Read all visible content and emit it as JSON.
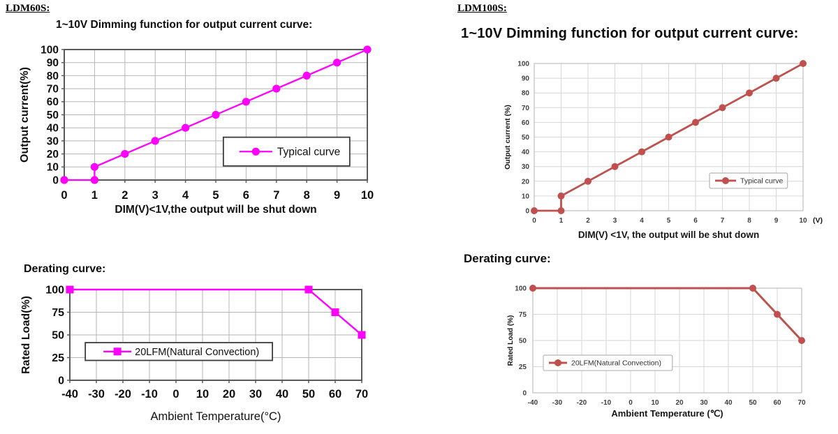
{
  "page": {
    "background": "#ffffff",
    "panels": [
      {
        "model_label": "LDM60S:"
      },
      {
        "model_label": "LDM100S:"
      }
    ]
  },
  "chart_data": [
    {
      "id": "ldm60s-dimming",
      "type": "line",
      "title": "1~10V Dimming function for output current curve:",
      "xlabel": "DIM(V)<1V,the output will be shut down",
      "ylabel": "Output current(%)",
      "xlim": [
        0,
        10
      ],
      "ylim": [
        0,
        100
      ],
      "xticks": [
        0,
        1,
        2,
        3,
        4,
        5,
        6,
        7,
        8,
        9,
        10
      ],
      "yticks": [
        0,
        10,
        20,
        30,
        40,
        50,
        60,
        70,
        80,
        90,
        100
      ],
      "grid": true,
      "legend": {
        "label": "Typical curve",
        "position": "inside-right"
      },
      "series": [
        {
          "name": "Typical curve",
          "color": "#ff00ff",
          "marker": "circle",
          "points": [
            [
              0,
              0
            ],
            [
              1,
              0
            ],
            [
              1,
              10
            ],
            [
              2,
              20
            ],
            [
              3,
              30
            ],
            [
              4,
              40
            ],
            [
              5,
              50
            ],
            [
              6,
              60
            ],
            [
              7,
              70
            ],
            [
              8,
              80
            ],
            [
              9,
              90
            ],
            [
              10,
              100
            ]
          ]
        }
      ]
    },
    {
      "id": "ldm60s-derating",
      "type": "line",
      "title": "Derating curve:",
      "xlabel": "Ambient Temperature(°C)",
      "ylabel": "Rated Load(%)",
      "xlim": [
        -40,
        70
      ],
      "ylim": [
        0,
        100
      ],
      "xticks": [
        -40,
        -30,
        -20,
        -10,
        0,
        10,
        20,
        30,
        40,
        50,
        60,
        70
      ],
      "yticks": [
        0,
        25,
        50,
        75,
        100
      ],
      "grid": true,
      "legend": {
        "label": "20LFM(Natural Convection)",
        "position": "inside-left"
      },
      "series": [
        {
          "name": "20LFM(Natural Convection)",
          "color": "#ff00ff",
          "marker": "square",
          "points": [
            [
              -40,
              100
            ],
            [
              50,
              100
            ],
            [
              60,
              75
            ],
            [
              70,
              50
            ]
          ]
        }
      ]
    },
    {
      "id": "ldm100s-dimming",
      "type": "line",
      "title": "1~10V Dimming function for output current curve:",
      "xlabel": "DIM(V) <1V, the output will be shut down",
      "ylabel": "Output current (%)",
      "x_unit": "(V)",
      "xlim": [
        0,
        10
      ],
      "ylim": [
        0,
        100
      ],
      "xticks": [
        0,
        1,
        2,
        3,
        4,
        5,
        6,
        7,
        8,
        9,
        10
      ],
      "yticks": [
        0,
        10,
        20,
        30,
        40,
        50,
        60,
        70,
        80,
        90,
        100
      ],
      "grid": true,
      "legend": {
        "label": "Typical curve",
        "position": "inside-right"
      },
      "series": [
        {
          "name": "Typical curve",
          "color": "#c0504d",
          "marker": "circle",
          "points": [
            [
              0,
              0
            ],
            [
              1,
              0
            ],
            [
              1,
              10
            ],
            [
              2,
              20
            ],
            [
              3,
              30
            ],
            [
              4,
              40
            ],
            [
              5,
              50
            ],
            [
              6,
              60
            ],
            [
              7,
              70
            ],
            [
              8,
              80
            ],
            [
              9,
              90
            ],
            [
              10,
              100
            ]
          ]
        }
      ]
    },
    {
      "id": "ldm100s-derating",
      "type": "line",
      "title": "Derating curve:",
      "xlabel": "Ambient Temperature (℃)",
      "ylabel": "Rated Load (%)",
      "xlim": [
        -40,
        70
      ],
      "ylim": [
        0,
        100
      ],
      "xticks": [
        -40,
        -30,
        -20,
        -10,
        0,
        10,
        20,
        30,
        40,
        50,
        60,
        70
      ],
      "yticks": [
        0,
        25,
        50,
        75,
        100
      ],
      "grid": true,
      "legend": {
        "label": "20LFM(Natural Convection)",
        "position": "inside-left"
      },
      "series": [
        {
          "name": "20LFM(Natural Convection)",
          "color": "#c0504d",
          "marker": "circle",
          "points": [
            [
              -40,
              100
            ],
            [
              50,
              100
            ],
            [
              60,
              75
            ],
            [
              70,
              50
            ]
          ]
        }
      ]
    }
  ]
}
